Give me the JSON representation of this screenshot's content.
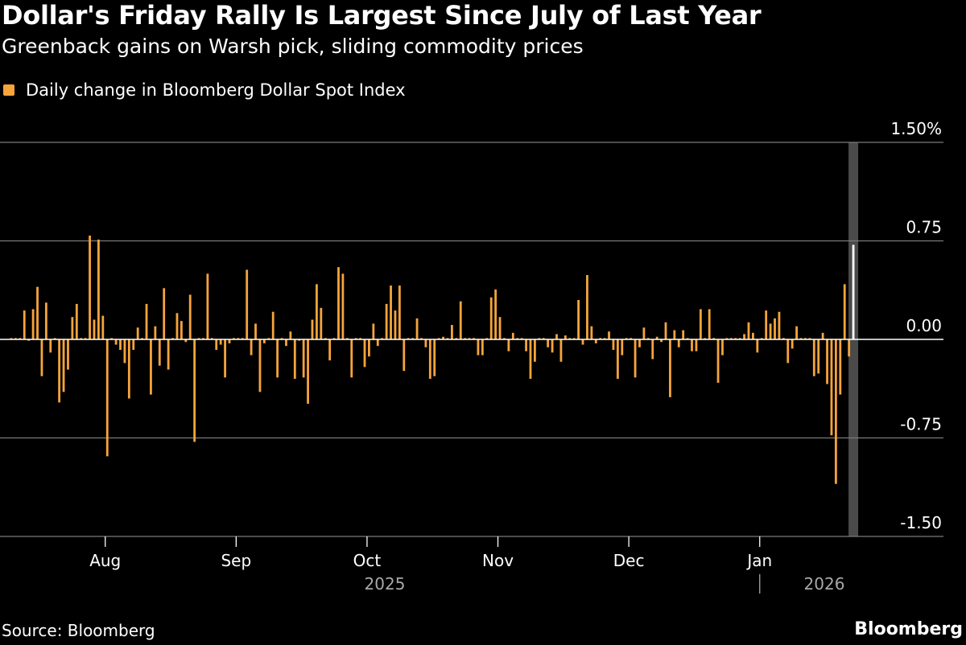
{
  "header": {
    "title": "Dollar's Friday Rally Is Largest Since July of Last Year",
    "subtitle": "Greenback gains on Warsh pick, sliding commodity prices"
  },
  "footer": {
    "source": "Source: Bloomberg",
    "brand": "Bloomberg"
  },
  "colors": {
    "bar": "#f7a43b",
    "highlight_bar": "#ffffff",
    "highlight_band": "#4a4a4a",
    "grid": "#7a7a7a",
    "zero_line": "#ffffff",
    "axis_text": "#ffffff",
    "year_text": "#a8a8a8"
  },
  "chart_data": {
    "type": "bar",
    "series": [
      {
        "name": "Daily change in Bloomberg Dollar Spot Index",
        "values": [
          0.01,
          0.01,
          0.01,
          0.22,
          -0.01,
          0.23,
          0.4,
          -0.28,
          0.28,
          -0.1,
          0.01,
          -0.48,
          -0.4,
          -0.23,
          0.17,
          0.27,
          0.01,
          0.01,
          0.79,
          0.15,
          0.76,
          0.18,
          -0.89,
          0.01,
          -0.04,
          -0.08,
          -0.18,
          -0.45,
          -0.08,
          0.09,
          0.01,
          0.27,
          -0.42,
          0.1,
          -0.2,
          0.39,
          -0.23,
          0.01,
          0.2,
          0.14,
          -0.02,
          0.34,
          -0.78,
          0.01,
          0.01,
          0.5,
          0.01,
          -0.08,
          -0.04,
          -0.29,
          -0.03,
          0.01,
          0.01,
          0.01,
          0.53,
          -0.12,
          0.12,
          -0.4,
          -0.03,
          0.01,
          0.21,
          -0.29,
          0.01,
          -0.05,
          0.06,
          -0.3,
          -0.01,
          -0.29,
          -0.49,
          0.15,
          0.42,
          0.24,
          0.01,
          -0.16,
          0.01,
          0.55,
          0.5,
          0.01,
          -0.29,
          0.01,
          0.01,
          -0.21,
          -0.13,
          0.12,
          -0.05,
          0.01,
          0.27,
          0.41,
          0.22,
          0.41,
          -0.24,
          0.01,
          0.01,
          0.16,
          0.01,
          -0.06,
          -0.3,
          -0.28,
          0.01,
          0.02,
          0.01,
          0.11,
          0.01,
          0.29,
          0.01,
          0.01,
          0.01,
          -0.12,
          -0.12,
          0.01,
          0.32,
          0.38,
          0.17,
          0.01,
          -0.09,
          0.05,
          0.01,
          0.01,
          -0.09,
          -0.3,
          -0.17,
          0.01,
          0.01,
          -0.06,
          -0.1,
          0.04,
          -0.17,
          0.03,
          0.01,
          0.01,
          0.3,
          -0.04,
          0.49,
          0.1,
          -0.03,
          0.01,
          0.01,
          0.06,
          -0.08,
          -0.3,
          -0.12,
          0.01,
          0.01,
          -0.29,
          -0.06,
          0.09,
          0.01,
          -0.15,
          0.02,
          -0.02,
          0.13,
          -0.44,
          0.07,
          -0.06,
          0.07,
          0.01,
          -0.09,
          -0.09,
          0.23,
          0.01,
          0.23,
          0.01,
          -0.33,
          -0.12,
          0.01,
          0.01,
          0.01,
          0.01,
          0.04,
          0.13,
          0.05,
          -0.1,
          0.01,
          0.22,
          0.12,
          0.16,
          0.21,
          0.01,
          -0.18,
          -0.07,
          0.1,
          0.01,
          0.01,
          0.01,
          -0.28,
          -0.26,
          0.05,
          -0.34,
          -0.73,
          -1.1,
          -0.42,
          0.42,
          -0.13,
          0.72
        ]
      }
    ],
    "highlight_last": true,
    "ylim": [
      -1.5,
      1.5
    ],
    "y_ticks": [
      1.5,
      0.75,
      0.0,
      -0.75,
      -1.5
    ],
    "y_tick_labels": [
      "1.50%",
      "0.75",
      "0.00",
      "-0.75",
      "-1.50"
    ],
    "x_month_labels": [
      "Aug",
      "Sep",
      "Oct",
      "Nov",
      "Dec",
      "Jan"
    ],
    "x_month_start_index": [
      22,
      52,
      82,
      112,
      142,
      172
    ],
    "x_year_labels": [
      "2025",
      "2026"
    ],
    "grid": true,
    "legend_position": "top-left"
  }
}
